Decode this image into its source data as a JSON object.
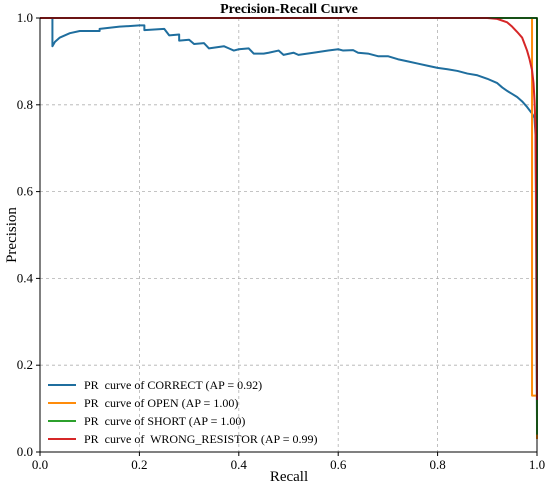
{
  "chart_data": {
    "type": "line",
    "title": "Precision-Recall Curve",
    "xlabel": "Recall",
    "ylabel": "Precision",
    "xlim": [
      0.0,
      1.0
    ],
    "ylim": [
      0.0,
      1.0
    ],
    "xticks": [
      "0.0",
      "0.2",
      "0.4",
      "0.6",
      "0.8",
      "1.0"
    ],
    "yticks": [
      "0.0",
      "0.2",
      "0.4",
      "0.6",
      "0.8",
      "1.0"
    ],
    "grid": true,
    "legend_position": "lower-left",
    "series": [
      {
        "name": "PR  curve of CORRECT (AP = 0.92)",
        "color": "#1f6e9e",
        "points": [
          [
            0,
            1.0
          ],
          [
            0.025,
            1.0
          ],
          [
            0.025,
            0.935
          ],
          [
            0.03,
            0.945
          ],
          [
            0.04,
            0.955
          ],
          [
            0.06,
            0.965
          ],
          [
            0.08,
            0.97
          ],
          [
            0.12,
            0.97
          ],
          [
            0.12,
            0.975
          ],
          [
            0.16,
            0.98
          ],
          [
            0.2,
            0.983
          ],
          [
            0.21,
            0.983
          ],
          [
            0.21,
            0.972
          ],
          [
            0.25,
            0.975
          ],
          [
            0.26,
            0.96
          ],
          [
            0.28,
            0.962
          ],
          [
            0.28,
            0.948
          ],
          [
            0.3,
            0.95
          ],
          [
            0.31,
            0.94
          ],
          [
            0.33,
            0.942
          ],
          [
            0.34,
            0.93
          ],
          [
            0.37,
            0.935
          ],
          [
            0.38,
            0.93
          ],
          [
            0.39,
            0.925
          ],
          [
            0.4,
            0.928
          ],
          [
            0.42,
            0.93
          ],
          [
            0.43,
            0.918
          ],
          [
            0.45,
            0.918
          ],
          [
            0.46,
            0.92
          ],
          [
            0.48,
            0.925
          ],
          [
            0.49,
            0.915
          ],
          [
            0.51,
            0.92
          ],
          [
            0.52,
            0.915
          ],
          [
            0.55,
            0.92
          ],
          [
            0.58,
            0.925
          ],
          [
            0.6,
            0.928
          ],
          [
            0.61,
            0.925
          ],
          [
            0.63,
            0.926
          ],
          [
            0.64,
            0.92
          ],
          [
            0.66,
            0.918
          ],
          [
            0.68,
            0.912
          ],
          [
            0.7,
            0.912
          ],
          [
            0.72,
            0.905
          ],
          [
            0.74,
            0.9
          ],
          [
            0.76,
            0.895
          ],
          [
            0.78,
            0.89
          ],
          [
            0.8,
            0.885
          ],
          [
            0.82,
            0.882
          ],
          [
            0.84,
            0.878
          ],
          [
            0.86,
            0.872
          ],
          [
            0.88,
            0.868
          ],
          [
            0.9,
            0.86
          ],
          [
            0.92,
            0.85
          ],
          [
            0.93,
            0.84
          ],
          [
            0.94,
            0.832
          ],
          [
            0.95,
            0.825
          ],
          [
            0.96,
            0.818
          ],
          [
            0.97,
            0.808
          ],
          [
            0.98,
            0.795
          ],
          [
            0.99,
            0.78
          ],
          [
            0.995,
            0.77
          ],
          [
            0.997,
            0.73
          ],
          [
            0.998,
            0.55
          ],
          [
            0.999,
            0.25
          ],
          [
            1.0,
            0.07
          ]
        ]
      },
      {
        "name": "PR  curve of OPEN (AP = 1.00)",
        "color": "#ff8c0a",
        "points": [
          [
            0,
            1.0
          ],
          [
            0.99,
            1.0
          ],
          [
            0.99,
            0.13
          ],
          [
            1.0,
            0.13
          ],
          [
            1.0,
            0.03
          ]
        ]
      },
      {
        "name": "PR  curve of SHORT (AP = 1.00)",
        "color": "#2ca02c",
        "points": [
          [
            0,
            1.0
          ],
          [
            1.0,
            1.0
          ],
          [
            1.0,
            0.04
          ]
        ]
      },
      {
        "name": "PR  curve of  WRONG_RESISTOR (AP = 0.99)",
        "color": "#d62728",
        "points": [
          [
            0,
            1.0
          ],
          [
            0.9,
            1.0
          ],
          [
            0.92,
            0.998
          ],
          [
            0.94,
            0.99
          ],
          [
            0.95,
            0.98
          ],
          [
            0.96,
            0.968
          ],
          [
            0.97,
            0.955
          ],
          [
            0.975,
            0.94
          ],
          [
            0.98,
            0.925
          ],
          [
            0.985,
            0.905
          ],
          [
            0.99,
            0.88
          ],
          [
            0.993,
            0.85
          ],
          [
            0.995,
            0.81
          ],
          [
            0.997,
            0.75
          ],
          [
            0.999,
            0.45
          ],
          [
            1.0,
            0.12
          ]
        ]
      }
    ]
  }
}
